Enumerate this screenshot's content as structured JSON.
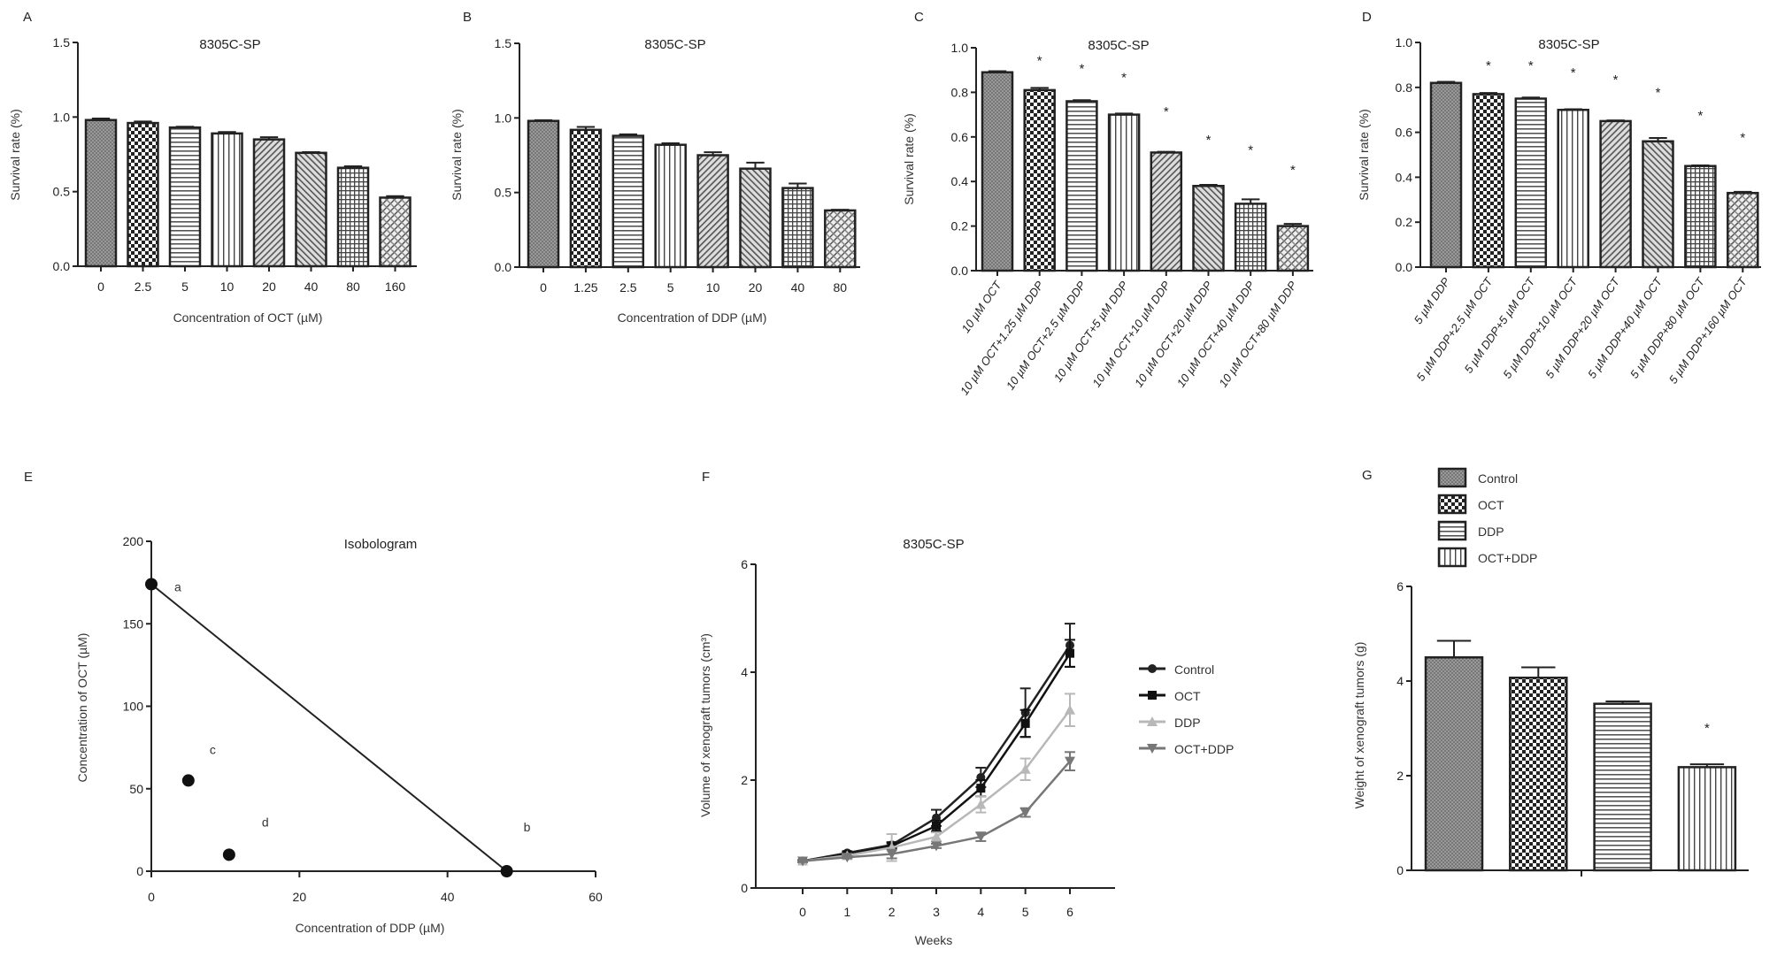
{
  "panel_letters": [
    "A",
    "B",
    "C",
    "D",
    "E",
    "F",
    "G"
  ],
  "chart_data": [
    {
      "type": "bar",
      "title": "8305C-SP",
      "ylabel": "Survival rate (%)",
      "xlabel": "Concentration of OCT (µM)",
      "categories": [
        "0",
        "2.5",
        "5",
        "10",
        "20",
        "40",
        "80",
        "160"
      ],
      "values": [
        0.98,
        0.96,
        0.93,
        0.89,
        0.85,
        0.76,
        0.66,
        0.46
      ],
      "errors": [
        0.01,
        0.01,
        0.005,
        0.01,
        0.015,
        0.005,
        0.01,
        0.01
      ],
      "ylim": [
        0,
        1.5
      ],
      "yticks": [
        "0.0",
        "0.5",
        "1.0",
        "1.5"
      ],
      "significant": []
    },
    {
      "type": "bar",
      "title": "8305C-SP",
      "ylabel": "Survival rate (%)",
      "xlabel": "Concentration of DDP (µM)",
      "categories": [
        "0",
        "1.25",
        "2.5",
        "5",
        "10",
        "20",
        "40",
        "80"
      ],
      "values": [
        0.98,
        0.92,
        0.88,
        0.82,
        0.75,
        0.66,
        0.53,
        0.38
      ],
      "errors": [
        0.005,
        0.02,
        0.01,
        0.01,
        0.02,
        0.04,
        0.03,
        0.005
      ],
      "ylim": [
        0,
        1.5
      ],
      "yticks": [
        "0.0",
        "0.5",
        "1.0",
        "1.5"
      ],
      "significant": []
    },
    {
      "type": "bar",
      "title": "8305C-SP",
      "ylabel": "Survival rate (%)",
      "xlabel": "",
      "categories": [
        "10 µM OCT",
        "10 µM OCT+1.25 µM DDP",
        "10 µM OCT+2.5 µM DDP",
        "10 µM OCT+5 µM DDP",
        "10 µM OCT+10 µM DDP",
        "10 µM OCT+20 µM DDP",
        "10 µM OCT+40 µM DDP",
        "10 µM OCT+80 µM DDP"
      ],
      "values": [
        0.89,
        0.81,
        0.76,
        0.7,
        0.53,
        0.38,
        0.3,
        0.2
      ],
      "errors": [
        0.005,
        0.01,
        0.005,
        0.005,
        0.003,
        0.005,
        0.02,
        0.01
      ],
      "ylim": [
        0,
        1.0
      ],
      "yticks": [
        "0.0",
        "0.2",
        "0.4",
        "0.6",
        "0.8",
        "1.0"
      ],
      "significant": [
        1,
        2,
        3,
        4,
        5,
        6,
        7
      ],
      "star": "*"
    },
    {
      "type": "bar",
      "title": "8305C-SP",
      "ylabel": "Survival rate (%)",
      "xlabel": "",
      "categories": [
        "5 µM DDP",
        "5 µM DDP+2.5 µM OCT",
        "5 µM DDP+5 µM OCT",
        "5 µM DDP+10 µM OCT",
        "5 µM DDP+20 µM OCT",
        "5 µM DDP+40 µM OCT",
        "5 µM DDP+80 µM OCT",
        "5 µM DDP+160 µM OCT"
      ],
      "values": [
        0.82,
        0.77,
        0.75,
        0.7,
        0.65,
        0.56,
        0.45,
        0.33
      ],
      "errors": [
        0.005,
        0.005,
        0.005,
        0.003,
        0.003,
        0.015,
        0.003,
        0.005
      ],
      "ylim": [
        0,
        1.0
      ],
      "yticks": [
        "0.0",
        "0.2",
        "0.4",
        "0.6",
        "0.8",
        "1.0"
      ],
      "significant": [
        1,
        2,
        3,
        4,
        5,
        6,
        7
      ],
      "star": "*"
    },
    {
      "type": "scatter",
      "title": "Isobologram",
      "xlabel": "Concentration of DDP (µM)",
      "ylabel": "Concentration of OCT (µM)",
      "xlim": [
        0,
        60
      ],
      "ylim": [
        0,
        200
      ],
      "xticks": [
        "0",
        "20",
        "40",
        "60"
      ],
      "yticks": [
        "0",
        "50",
        "100",
        "150",
        "200"
      ],
      "points": [
        {
          "label": "a",
          "x": 0,
          "y": 174
        },
        {
          "label": "b",
          "x": 48,
          "y": 0
        },
        {
          "label": "c",
          "x": 5,
          "y": 55
        },
        {
          "label": "d",
          "x": 10.5,
          "y": 10
        }
      ],
      "line": [
        "a",
        "b"
      ]
    },
    {
      "type": "line",
      "title": "8305C-SP",
      "xlabel": "Weeks",
      "ylabel": "Volume of xenograft tumors (cm³)",
      "x": [
        0,
        1,
        2,
        3,
        4,
        5,
        6
      ],
      "xticks": [
        "0",
        "1",
        "2",
        "3",
        "4",
        "5",
        "6"
      ],
      "ylim": [
        0,
        6
      ],
      "yticks": [
        "0",
        "2",
        "4",
        "6"
      ],
      "legend": "right",
      "series": [
        {
          "name": "Control",
          "marker": "circle",
          "color": "#222222",
          "values": [
            0.5,
            0.65,
            0.8,
            1.3,
            2.05,
            3.25,
            4.5
          ],
          "errors": [
            0.02,
            0.03,
            0.05,
            0.15,
            0.18,
            0.45,
            0.4
          ]
        },
        {
          "name": "OCT",
          "marker": "square",
          "color": "#111111",
          "values": [
            0.5,
            0.62,
            0.78,
            1.15,
            1.85,
            3.05,
            4.35
          ],
          "errors": [
            0.02,
            0.03,
            0.05,
            0.1,
            0.15,
            0.25,
            0.25
          ]
        },
        {
          "name": "DDP",
          "marker": "triangle-up",
          "color": "#b8b8b8",
          "values": [
            0.5,
            0.6,
            0.75,
            0.95,
            1.55,
            2.2,
            3.3
          ],
          "errors": [
            0.02,
            0.03,
            0.25,
            0.08,
            0.15,
            0.2,
            0.3
          ]
        },
        {
          "name": "OCT+DDP",
          "marker": "triangle-down",
          "color": "#777777",
          "values": [
            0.5,
            0.57,
            0.63,
            0.78,
            0.95,
            1.4,
            2.35
          ],
          "errors": [
            0.02,
            0.02,
            0.08,
            0.04,
            0.08,
            0.08,
            0.17
          ]
        }
      ]
    },
    {
      "type": "bar",
      "title": "",
      "ylabel": "Weight of xenograft tumors (g)",
      "xlabel": "",
      "categories": [
        "Control",
        "OCT",
        "DDP",
        "OCT+DDP"
      ],
      "values": [
        4.5,
        4.07,
        3.52,
        2.18
      ],
      "errors": [
        0.35,
        0.22,
        0.05,
        0.06
      ],
      "ylim": [
        0,
        6
      ],
      "yticks": [
        "0",
        "2",
        "4",
        "6"
      ],
      "significant": [
        3
      ],
      "star": "*",
      "legend": "top"
    }
  ]
}
